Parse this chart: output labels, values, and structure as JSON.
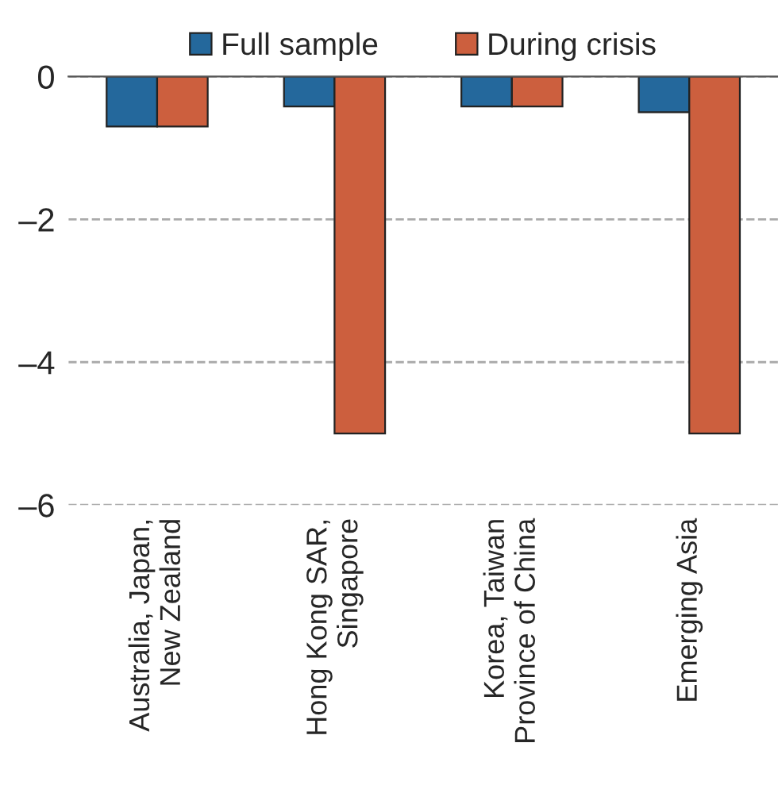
{
  "chart_data": {
    "type": "bar",
    "categories": [
      "Australia, Japan,\nNew Zealand",
      "Hong Kong SAR,\nSingapore",
      "Korea, Taiwan\nProvince of China",
      "Emerging Asia"
    ],
    "series": [
      {
        "name": "Full sample",
        "color": "#24689c",
        "values": [
          -0.7,
          -0.42,
          -0.42,
          -0.5
        ]
      },
      {
        "name": "During crisis",
        "color": "#cc5f3e",
        "values": [
          -0.7,
          -5.0,
          -0.42,
          -5.0
        ]
      }
    ],
    "ylim": [
      -6,
      0
    ],
    "yticks": [
      {
        "value": -6,
        "label": "–6"
      },
      {
        "value": -4,
        "label": "–4"
      },
      {
        "value": -2,
        "label": "–2"
      },
      0
    ],
    "grid": "y",
    "legend": "top"
  }
}
